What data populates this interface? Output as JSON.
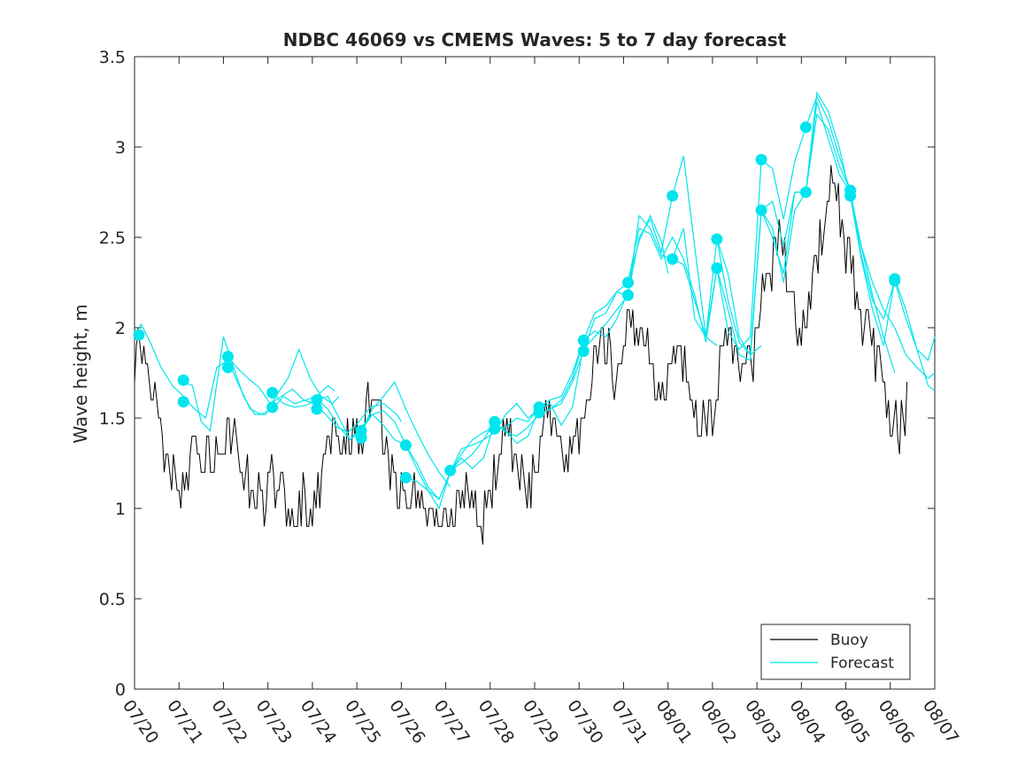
{
  "chart_data": {
    "type": "line",
    "title": "NDBC 46069 vs CMEMS Waves: 5 to 7 day forecast",
    "xlabel": "",
    "ylabel": "Wave height, m",
    "xlim": [
      "07/20",
      "08/07"
    ],
    "ylim": [
      0,
      3.5
    ],
    "x_ticks": [
      "07/20",
      "07/21",
      "07/22",
      "07/23",
      "07/24",
      "07/25",
      "07/26",
      "07/27",
      "07/28",
      "07/29",
      "07/30",
      "07/31",
      "08/01",
      "08/02",
      "08/03",
      "08/04",
      "08/05",
      "08/06",
      "08/07"
    ],
    "y_ticks": [
      "0",
      "0.5",
      "1",
      "1.5",
      "2",
      "2.5",
      "3",
      "3.5"
    ],
    "grid": false,
    "legend": {
      "position": "bottom-right",
      "entries": [
        {
          "label": "Buoy",
          "color": "#000000"
        },
        {
          "label": "Forecast",
          "color": "#00e5ee"
        }
      ]
    },
    "buoy_anchors": [
      [
        0.0,
        1.7
      ],
      [
        0.1,
        1.9
      ],
      [
        0.2,
        2.0
      ],
      [
        0.35,
        1.7
      ],
      [
        0.5,
        1.5
      ],
      [
        0.7,
        1.3
      ],
      [
        0.9,
        1.2
      ],
      [
        1.1,
        1.15
      ],
      [
        1.3,
        1.3
      ],
      [
        1.5,
        1.35
      ],
      [
        1.7,
        1.3
      ],
      [
        1.9,
        1.25
      ],
      [
        2.1,
        1.45
      ],
      [
        2.3,
        1.35
      ],
      [
        2.5,
        1.2
      ],
      [
        2.7,
        1.1
      ],
      [
        2.9,
        1.05
      ],
      [
        3.1,
        1.2
      ],
      [
        3.3,
        1.15
      ],
      [
        3.5,
        1.0
      ],
      [
        3.7,
        1.05
      ],
      [
        3.9,
        1.0
      ],
      [
        4.1,
        1.05
      ],
      [
        4.3,
        1.3
      ],
      [
        4.5,
        1.45
      ],
      [
        4.7,
        1.4
      ],
      [
        4.9,
        1.35
      ],
      [
        5.1,
        1.45
      ],
      [
        5.3,
        1.55
      ],
      [
        5.5,
        1.5
      ],
      [
        5.7,
        1.3
      ],
      [
        5.9,
        1.1
      ],
      [
        6.1,
        1.05
      ],
      [
        6.3,
        1.1
      ],
      [
        6.5,
        1.0
      ],
      [
        6.7,
        0.95
      ],
      [
        6.9,
        0.95
      ],
      [
        7.1,
        0.85
      ],
      [
        7.3,
        1.05
      ],
      [
        7.5,
        1.2
      ],
      [
        7.7,
        1.0
      ],
      [
        7.9,
        0.95
      ],
      [
        8.1,
        1.15
      ],
      [
        8.3,
        1.35
      ],
      [
        8.5,
        1.35
      ],
      [
        8.7,
        1.15
      ],
      [
        8.9,
        1.1
      ],
      [
        9.1,
        1.3
      ],
      [
        9.3,
        1.55
      ],
      [
        9.5,
        1.5
      ],
      [
        9.7,
        1.25
      ],
      [
        9.9,
        1.35
      ],
      [
        10.1,
        1.5
      ],
      [
        10.3,
        1.75
      ],
      [
        10.5,
        1.95
      ],
      [
        10.7,
        1.85
      ],
      [
        10.9,
        1.7
      ],
      [
        11.1,
        1.95
      ],
      [
        11.3,
        2.05
      ],
      [
        11.5,
        1.9
      ],
      [
        11.7,
        1.7
      ],
      [
        11.9,
        1.6
      ],
      [
        12.1,
        1.85
      ],
      [
        12.3,
        1.9
      ],
      [
        12.5,
        1.7
      ],
      [
        12.7,
        1.5
      ],
      [
        12.9,
        1.45
      ],
      [
        13.1,
        1.65
      ],
      [
        13.3,
        1.95
      ],
      [
        13.5,
        1.85
      ],
      [
        13.7,
        1.75
      ],
      [
        13.9,
        1.8
      ],
      [
        14.1,
        2.1
      ],
      [
        14.3,
        2.35
      ],
      [
        14.5,
        2.45
      ],
      [
        14.7,
        2.3
      ],
      [
        14.9,
        2.05
      ],
      [
        15.1,
        2.0
      ],
      [
        15.3,
        2.3
      ],
      [
        15.5,
        2.65
      ],
      [
        15.7,
        2.8
      ],
      [
        15.9,
        2.55
      ],
      [
        16.1,
        2.3
      ],
      [
        16.3,
        2.05
      ],
      [
        16.5,
        2.0
      ],
      [
        16.7,
        1.85
      ],
      [
        16.9,
        1.6
      ],
      [
        17.1,
        1.45
      ],
      [
        17.3,
        1.5
      ],
      [
        17.4,
        1.65
      ]
    ],
    "forecast_series": [
      {
        "x": [
          0.0,
          0.15,
          0.35,
          0.6,
          0.85,
          1.1,
          1.35,
          1.6,
          1.85,
          2.1,
          2.35,
          2.6,
          2.85,
          3.1,
          3.35,
          3.6,
          3.85,
          4.1,
          4.35,
          4.5
        ],
        "y": [
          1.95,
          2.02,
          1.92,
          1.78,
          1.68,
          1.62,
          1.55,
          1.5,
          1.78,
          1.82,
          1.68,
          1.55,
          1.52,
          1.55,
          1.62,
          1.58,
          1.6,
          1.62,
          1.68,
          1.65
        ]
      },
      {
        "x": [
          1.1,
          1.3,
          1.5,
          1.7,
          2.0,
          2.2,
          2.45,
          2.7,
          2.95,
          3.2,
          3.45,
          3.7,
          3.95,
          4.2,
          4.45,
          4.6
        ],
        "y": [
          1.7,
          1.68,
          1.48,
          1.43,
          1.95,
          1.8,
          1.62,
          1.52,
          1.52,
          1.63,
          1.72,
          1.88,
          1.72,
          1.62,
          1.58,
          1.62
        ]
      },
      {
        "x": [
          2.1,
          2.3,
          2.55,
          2.8,
          3.05,
          3.3,
          3.55,
          3.8,
          4.05,
          4.3,
          4.55,
          4.8,
          5.05,
          5.3,
          5.6,
          5.9,
          6.0
        ],
        "y": [
          1.84,
          1.78,
          1.72,
          1.67,
          1.58,
          1.62,
          1.66,
          1.6,
          1.58,
          1.52,
          1.45,
          1.42,
          1.48,
          1.56,
          1.58,
          1.52,
          1.48
        ]
      },
      {
        "x": [
          3.1,
          3.35,
          3.6,
          3.85,
          4.1,
          4.35,
          4.6,
          4.85,
          5.1,
          5.35,
          5.6,
          5.85,
          6.1,
          6.35,
          6.6,
          6.85,
          7.1
        ],
        "y": [
          1.64,
          1.58,
          1.56,
          1.57,
          1.6,
          1.62,
          1.5,
          1.38,
          1.43,
          1.55,
          1.62,
          1.7,
          1.55,
          1.42,
          1.3,
          1.2,
          1.12
        ]
      },
      {
        "x": [
          4.1,
          4.35,
          4.6,
          4.85,
          5.1,
          5.35,
          5.6,
          5.85,
          6.1,
          6.35,
          6.6,
          6.85,
          7.1,
          7.35,
          7.6,
          7.85,
          8.1
        ],
        "y": [
          1.6,
          1.55,
          1.45,
          1.38,
          1.45,
          1.52,
          1.46,
          1.38,
          1.35,
          1.25,
          1.12,
          1.05,
          1.2,
          1.3,
          1.38,
          1.42,
          1.45
        ]
      },
      {
        "x": [
          5.1,
          5.35,
          5.6,
          5.85,
          6.1,
          6.35,
          6.6,
          6.85,
          7.1,
          7.35,
          7.6,
          7.85,
          8.1,
          8.35,
          8.6,
          8.85,
          9.1
        ],
        "y": [
          1.43,
          1.52,
          1.54,
          1.48,
          1.35,
          1.22,
          1.1,
          1.0,
          1.2,
          1.33,
          1.35,
          1.38,
          1.42,
          1.52,
          1.58,
          1.5,
          1.55
        ]
      },
      {
        "x": [
          6.1,
          6.35,
          6.6,
          6.85,
          7.1,
          7.35,
          7.6,
          7.85,
          8.1,
          8.35,
          8.6,
          8.85,
          9.1,
          9.35,
          9.6,
          9.85,
          10.1
        ],
        "y": [
          1.17,
          1.15,
          1.1,
          1.05,
          1.2,
          1.28,
          1.22,
          1.28,
          1.47,
          1.43,
          1.36,
          1.4,
          1.55,
          1.58,
          1.46,
          1.56,
          1.9
        ]
      },
      {
        "x": [
          7.1,
          7.35,
          7.6,
          7.85,
          8.1,
          8.35,
          8.6,
          8.85,
          9.1,
          9.35,
          9.6,
          9.85,
          10.1,
          10.35,
          10.6,
          10.85,
          11.1
        ],
        "y": [
          1.21,
          1.25,
          1.3,
          1.38,
          1.48,
          1.42,
          1.4,
          1.45,
          1.52,
          1.55,
          1.6,
          1.72,
          1.93,
          1.98,
          1.95,
          2.05,
          2.2
        ]
      },
      {
        "x": [
          8.1,
          8.35,
          8.6,
          8.85,
          9.1,
          9.35,
          9.6,
          9.85,
          10.1,
          10.35,
          10.6,
          10.85,
          11.1,
          11.35,
          11.6,
          11.85,
          12.0
        ],
        "y": [
          1.44,
          1.45,
          1.5,
          1.48,
          1.56,
          1.6,
          1.62,
          1.75,
          1.93,
          2.08,
          2.12,
          2.2,
          2.25,
          2.48,
          2.62,
          2.48,
          2.3
        ]
      },
      {
        "x": [
          9.1,
          9.35,
          9.6,
          9.85,
          10.1,
          10.35,
          10.6,
          10.85,
          11.1,
          11.35,
          11.6,
          11.85,
          12.1,
          12.35,
          12.6,
          12.85,
          13.1
        ],
        "y": [
          1.52,
          1.55,
          1.58,
          1.7,
          1.87,
          2.05,
          2.08,
          2.2,
          2.17,
          2.62,
          2.55,
          2.4,
          2.38,
          2.55,
          2.05,
          1.95,
          1.9
        ]
      },
      {
        "x": [
          10.1,
          10.35,
          10.6,
          10.85,
          11.1,
          11.35,
          11.6,
          11.85,
          12.1,
          12.35,
          12.6,
          12.85,
          13.1,
          13.35,
          13.6,
          13.85,
          14.1
        ],
        "y": [
          1.88,
          1.95,
          2.02,
          2.1,
          2.18,
          2.5,
          2.6,
          2.42,
          2.73,
          2.95,
          2.45,
          1.95,
          2.49,
          2.3,
          1.95,
          1.85,
          1.9
        ]
      },
      {
        "x": [
          11.1,
          11.35,
          11.6,
          11.85,
          12.1,
          12.35,
          12.6,
          12.85,
          13.1,
          13.35,
          13.6,
          13.85,
          14.1,
          14.35,
          14.6,
          14.85,
          15.1
        ],
        "y": [
          2.25,
          2.55,
          2.52,
          2.38,
          2.5,
          2.38,
          2.18,
          1.92,
          2.33,
          2.1,
          1.85,
          1.82,
          2.65,
          2.7,
          2.45,
          2.75,
          2.75
        ]
      },
      {
        "x": [
          12.1,
          12.35,
          12.6,
          12.85,
          13.1,
          13.35,
          13.6,
          13.85,
          14.1,
          14.35,
          14.6,
          14.85,
          15.1,
          15.35,
          15.6,
          15.85,
          16.1
        ],
        "y": [
          2.38,
          2.35,
          2.15,
          1.95,
          2.33,
          1.98,
          1.88,
          1.95,
          2.93,
          2.88,
          2.6,
          2.92,
          3.11,
          3.28,
          3.15,
          2.95,
          2.76
        ]
      },
      {
        "x": [
          13.1,
          13.35,
          13.6,
          13.85,
          14.1,
          14.35,
          14.6,
          14.85,
          15.1,
          15.35,
          15.6,
          15.85,
          16.1,
          16.35,
          16.6,
          16.85,
          17.1
        ],
        "y": [
          2.49,
          2.15,
          1.92,
          1.85,
          2.65,
          2.55,
          2.25,
          2.65,
          2.75,
          3.3,
          3.2,
          3.0,
          2.73,
          2.45,
          2.18,
          1.95,
          1.75
        ]
      },
      {
        "x": [
          14.1,
          14.35,
          14.6,
          14.85,
          15.1,
          15.35,
          15.6,
          15.85,
          16.1,
          16.35,
          16.6,
          16.85,
          17.1,
          17.35,
          17.6,
          17.85,
          18.0
        ],
        "y": [
          2.65,
          2.5,
          2.3,
          2.75,
          2.75,
          3.25,
          3.05,
          2.85,
          2.75,
          2.45,
          2.25,
          2.1,
          2.0,
          1.85,
          1.78,
          1.72,
          1.75
        ]
      },
      {
        "x": [
          15.1,
          15.35,
          15.6,
          15.85,
          16.1,
          16.35,
          16.6,
          16.85,
          17.1,
          17.35,
          17.6,
          17.85,
          18.0
        ],
        "y": [
          2.75,
          3.18,
          3.1,
          2.9,
          2.76,
          2.4,
          2.15,
          2.05,
          2.26,
          2.05,
          1.88,
          1.82,
          1.95
        ]
      },
      {
        "x": [
          16.1,
          16.35,
          16.6,
          16.85,
          17.1,
          17.35,
          17.6,
          17.85,
          18.0
        ],
        "y": [
          2.73,
          2.38,
          2.1,
          1.9,
          2.27,
          2.1,
          1.88,
          1.68,
          1.65
        ]
      }
    ],
    "forecast_markers": [
      [
        0.1,
        1.96
      ],
      [
        1.1,
        1.71
      ],
      [
        1.1,
        1.59
      ],
      [
        2.1,
        1.84
      ],
      [
        2.1,
        1.78
      ],
      [
        3.1,
        1.64
      ],
      [
        3.1,
        1.56
      ],
      [
        4.1,
        1.6
      ],
      [
        4.1,
        1.55
      ],
      [
        5.1,
        1.43
      ],
      [
        5.1,
        1.39
      ],
      [
        6.1,
        1.35
      ],
      [
        6.1,
        1.17
      ],
      [
        7.1,
        1.21
      ],
      [
        8.1,
        1.48
      ],
      [
        8.1,
        1.44
      ],
      [
        9.1,
        1.56
      ],
      [
        9.1,
        1.53
      ],
      [
        10.1,
        1.93
      ],
      [
        10.1,
        1.87
      ],
      [
        11.1,
        2.25
      ],
      [
        11.1,
        2.18
      ],
      [
        12.1,
        2.73
      ],
      [
        12.1,
        2.38
      ],
      [
        13.1,
        2.49
      ],
      [
        13.1,
        2.33
      ],
      [
        14.1,
        2.93
      ],
      [
        14.1,
        2.65
      ],
      [
        15.1,
        3.11
      ],
      [
        15.1,
        2.75
      ],
      [
        16.1,
        2.76
      ],
      [
        16.1,
        2.73
      ],
      [
        17.1,
        2.27
      ],
      [
        17.1,
        2.26
      ]
    ],
    "colors": {
      "buoy": "#000000",
      "forecast": "#00e5ee",
      "axes": "#262626"
    }
  }
}
